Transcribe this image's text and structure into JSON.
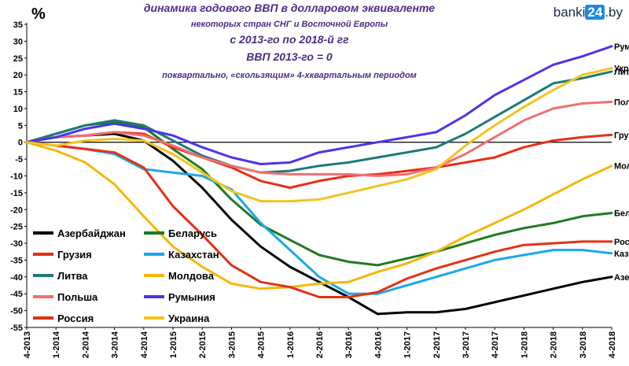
{
  "logo": {
    "pre": "banki",
    "box": "24",
    "post": ".by"
  },
  "chart_data": {
    "type": "line",
    "unit_label": "%",
    "title_lines": [
      "динамика годового ВВП в долларовом эквиваленте",
      "некоторых стран СНГ и Восточной Европы",
      "с 2013-го по 2018-й гг",
      "ВВП 2013-го = 0",
      "поквартально, «скользящим» 4-хквартальным периодом"
    ],
    "ylim": [
      -55,
      35
    ],
    "y_ticks": [
      35,
      30,
      25,
      20,
      15,
      10,
      5,
      0,
      -5,
      -10,
      -15,
      -20,
      -25,
      -30,
      -35,
      -40,
      -45,
      -50,
      -55
    ],
    "categories": [
      "4-2013",
      "1-2014",
      "2-2014",
      "3-2014",
      "4-2014",
      "1-2015",
      "2-2015",
      "3-2015",
      "4-2015",
      "1-2016",
      "2-2016",
      "3-2016",
      "4-2016",
      "1-2017",
      "2-2017",
      "3-2017",
      "4-2017",
      "1-2018",
      "2-2018",
      "3-2018",
      "4-2018"
    ],
    "grid": false,
    "series": [
      {
        "name": "Азербайджан",
        "end_label": "Азе",
        "color": "#000000",
        "values": [
          0,
          1.5,
          2,
          2.5,
          0.5,
          -5.5,
          -13.5,
          -23,
          -31,
          -37,
          -41.5,
          -46,
          -51,
          -50.5,
          -50.5,
          -49.5,
          -47.5,
          -45.5,
          -43.5,
          -41.5,
          -40
        ]
      },
      {
        "name": "Беларусь",
        "end_label": "Бел",
        "color": "#1e7b1e",
        "values": [
          0,
          2.5,
          5,
          6,
          4.5,
          -2,
          -8,
          -17,
          -24.5,
          -29,
          -33.5,
          -35.5,
          -36.5,
          -34.5,
          -32.5,
          -30,
          -27.5,
          -25.5,
          -24,
          -22,
          -21
        ]
      },
      {
        "name": "Грузия",
        "end_label": "Гру",
        "color": "#ea2e15",
        "values": [
          0,
          1.5,
          2,
          3,
          2.5,
          -1.5,
          -4.5,
          -7.5,
          -11.5,
          -13.5,
          -11.5,
          -10,
          -9.5,
          -8.5,
          -7.5,
          -6,
          -4.5,
          -1.5,
          0.5,
          1.5,
          2.2
        ]
      },
      {
        "name": "Казахстан",
        "end_label": "Каз",
        "color": "#1aa8e8",
        "values": [
          0,
          -1,
          -2,
          -3.5,
          -8,
          -9,
          -10,
          -14,
          -24,
          -32,
          -40,
          -45,
          -45,
          -42.5,
          -40,
          -37.5,
          -35,
          -33.5,
          -32,
          -32,
          -33
        ]
      },
      {
        "name": "Литва",
        "end_label": "Лит",
        "color": "#1e7a78",
        "values": [
          0,
          2.5,
          5,
          6.5,
          5,
          0.5,
          -4,
          -7,
          -9,
          -8.5,
          -7,
          -6,
          -4.5,
          -3,
          -1.5,
          2.5,
          7.5,
          12.5,
          17.5,
          19,
          21
        ]
      },
      {
        "name": "Молдова",
        "end_label": "Мол",
        "color": "#f5b70a",
        "values": [
          0,
          -2.5,
          -6,
          -12.5,
          -22,
          -31,
          -37,
          -42,
          -43.5,
          -43,
          -42,
          -41.5,
          -38.5,
          -36,
          -32.5,
          -28,
          -24,
          -20,
          -15.5,
          -11,
          -7
        ]
      },
      {
        "name": "Польша",
        "end_label": "Пол",
        "color": "#f07070",
        "values": [
          0,
          1.5,
          2,
          3,
          2,
          -1,
          -4.5,
          -7,
          -9,
          -9.5,
          -9.5,
          -9.5,
          -10,
          -9.5,
          -7.5,
          -3.5,
          1.5,
          6.5,
          10,
          11.5,
          12
        ]
      },
      {
        "name": "Румыния",
        "end_label": "Рум",
        "color": "#4a35e8",
        "values": [
          0,
          1.5,
          4,
          5.5,
          4,
          2,
          -1.5,
          -4.5,
          -6.5,
          -6,
          -3,
          -1.5,
          0,
          1.5,
          3,
          8,
          14,
          18.5,
          23,
          25.5,
          28.5
        ]
      },
      {
        "name": "Россия",
        "end_label": "Рос",
        "color": "#e33214",
        "values": [
          0,
          -1,
          -2,
          -3,
          -7.5,
          -19,
          -27.5,
          -36.5,
          -41.5,
          -43,
          -46,
          -46,
          -44.5,
          -40.5,
          -37.5,
          -35,
          -32.5,
          -30.5,
          -30,
          -29.5,
          -29.5
        ]
      },
      {
        "name": "Украина",
        "end_label": "Укр",
        "color": "#f2c31f",
        "values": [
          0,
          -1,
          0.5,
          1,
          0.5,
          -3.5,
          -9,
          -14.5,
          -17.5,
          -17.5,
          -17,
          -15,
          -13,
          -11,
          -8,
          -1,
          5,
          10.5,
          15.5,
          20,
          22
        ]
      }
    ],
    "legend_order": [
      "Азербайджан",
      "Беларусь",
      "Грузия",
      "Казахстан",
      "Литва",
      "Молдова",
      "Польша",
      "Румыния",
      "Россия",
      "Украина"
    ],
    "legend_placement": "bottom-left inside plot"
  }
}
